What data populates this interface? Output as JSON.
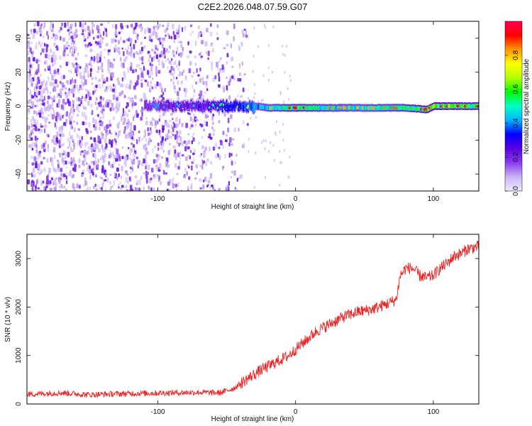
{
  "figure_title": "C2E2.2026.048.07.59.G07",
  "chart_data": [
    {
      "type": "heatmap",
      "title": "C2E2.2026.048.07.59.G07",
      "xlabel": "Height of straight line (km)",
      "ylabel": "Frequency (Hz)",
      "xlim": [
        -195,
        133
      ],
      "ylim": [
        -50,
        50
      ],
      "xticks": [
        -100,
        0,
        100
      ],
      "yticks": [
        -40,
        -20,
        0,
        20,
        40
      ],
      "colorbar": {
        "label": "Normalized spectral amplitude",
        "range": [
          0.0,
          1.0
        ],
        "ticks": [
          0.0,
          0.2,
          0.4,
          0.6,
          0.8
        ],
        "colormap": [
          "#f0eaff",
          "#c9b3f5",
          "#8a3cf0",
          "#5a00e0",
          "#0000ff",
          "#00b4ff",
          "#00ffc8",
          "#00ff00",
          "#b4ff00",
          "#ffff00",
          "#ff9600",
          "#ff0000",
          "#ff0050"
        ]
      },
      "frequency_track": {
        "x": [
          -110,
          -80,
          -50,
          -30,
          -20,
          0,
          20,
          50,
          80,
          95,
          100,
          133
        ],
        "center_hz": [
          0,
          0,
          0,
          0,
          -1,
          -1,
          -1,
          -1,
          -1,
          -2,
          0,
          0
        ],
        "peak_amplitude": [
          0.3,
          0.35,
          0.45,
          0.6,
          0.7,
          0.85,
          0.75,
          0.7,
          0.8,
          0.9,
          0.95,
          0.85
        ]
      },
      "noise_extent_km": [
        -195,
        -35
      ]
    },
    {
      "type": "line",
      "title": "",
      "xlabel": "Height of straight line (km)",
      "ylabel": "SNR (10 * v/v)",
      "xlim": [
        -195,
        133
      ],
      "ylim": [
        0,
        3500
      ],
      "xticks": [
        -100,
        0,
        100
      ],
      "yticks": [
        0,
        1000,
        2000,
        3000
      ],
      "series": [
        {
          "name": "SNR",
          "color": "#ee2222",
          "x": [
            -195,
            -170,
            -150,
            -130,
            -110,
            -90,
            -70,
            -55,
            -45,
            -35,
            -25,
            -15,
            -5,
            5,
            15,
            25,
            35,
            45,
            55,
            65,
            73,
            76,
            80,
            85,
            90,
            95,
            100,
            105,
            110,
            115,
            120,
            125,
            133
          ],
          "y": [
            200,
            230,
            190,
            210,
            220,
            230,
            240,
            230,
            320,
            520,
            700,
            850,
            1000,
            1250,
            1500,
            1650,
            1800,
            1900,
            1950,
            2050,
            2150,
            2650,
            2800,
            2800,
            2650,
            2600,
            2650,
            2800,
            2900,
            3050,
            3100,
            3200,
            3250
          ],
          "noise_amplitude": 150
        }
      ]
    }
  ]
}
